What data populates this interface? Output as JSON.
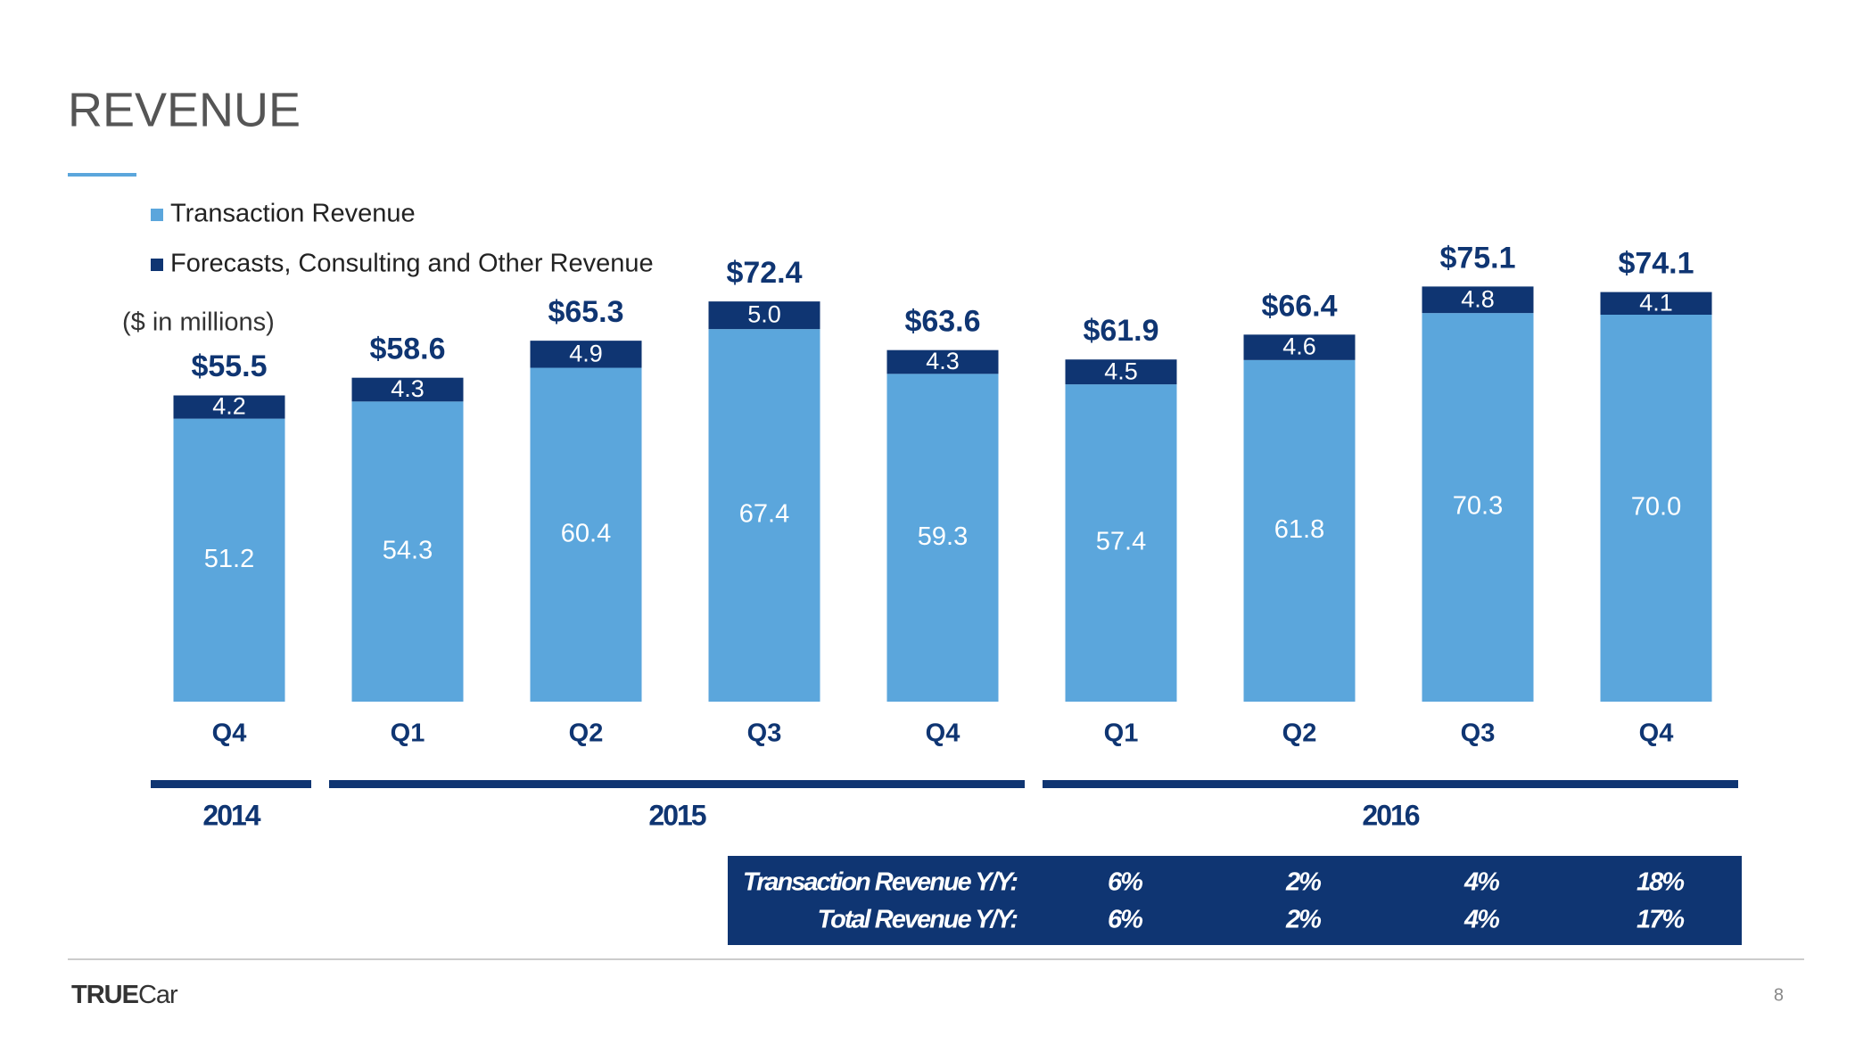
{
  "title": "REVENUE",
  "chart_data": {
    "type": "stacked_bar",
    "note": "($ in millions)",
    "categories": [
      "Q4",
      "Q1",
      "Q2",
      "Q3",
      "Q4",
      "Q1",
      "Q2",
      "Q3",
      "Q4"
    ],
    "x_groups": [
      {
        "label": "2014",
        "count": 1
      },
      {
        "label": "2015",
        "count": 4
      },
      {
        "label": "2016",
        "count": 4
      }
    ],
    "series": [
      {
        "name": "Transaction Revenue",
        "color": "#5ba6dc",
        "values": [
          51.2,
          54.3,
          60.4,
          67.4,
          59.3,
          57.4,
          61.8,
          70.3,
          70.0
        ],
        "value_labels": [
          "51.2",
          "54.3",
          "60.4",
          "67.4",
          "59.3",
          "57.4",
          "61.8",
          "70.3",
          "70.0"
        ]
      },
      {
        "name": "Forecasts, Consulting and Other Revenue",
        "color": "#0f3572",
        "values": [
          4.2,
          4.3,
          4.9,
          5.0,
          4.3,
          4.5,
          4.6,
          4.8,
          4.1
        ],
        "value_labels": [
          "4.2",
          "4.3",
          "4.9",
          "5.0",
          "4.3",
          "4.5",
          "4.6",
          "4.8",
          "4.1"
        ]
      }
    ],
    "totals": {
      "values": [
        55.5,
        58.6,
        65.3,
        72.4,
        63.6,
        61.9,
        66.4,
        75.1,
        74.1
      ],
      "value_labels": [
        "$55.5",
        "$58.6",
        "$65.3",
        "$72.4",
        "$63.6",
        "$61.9",
        "$66.4",
        "$75.1",
        "$74.1"
      ]
    }
  },
  "yoy_table": {
    "rows": [
      {
        "label": "Transaction Revenue Y/Y:",
        "values": [
          "6%",
          "2%",
          "4%",
          "18%"
        ]
      },
      {
        "label": "Total Revenue Y/Y:",
        "values": [
          "6%",
          "2%",
          "4%",
          "17%"
        ]
      }
    ]
  },
  "footer": {
    "logo_bold": "TRUE",
    "logo_light": "Car",
    "page": "8"
  }
}
